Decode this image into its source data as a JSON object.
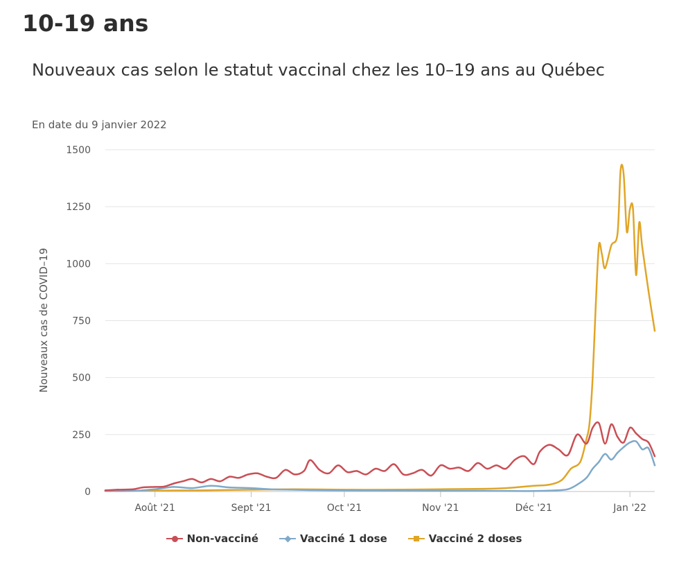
{
  "page": {
    "heading": "10-19 ans"
  },
  "chart_data": {
    "type": "line",
    "title": "Nouveaux cas selon le statut vaccinal chez les 10–19 ans au Québec",
    "subtitle": "En date du 9 janvier 2022",
    "ylabel": "Nouveaux cas de COVID–19",
    "xlabel": "",
    "ylim": [
      0,
      1500
    ],
    "yticks": [
      0,
      250,
      500,
      750,
      1000,
      1250,
      1500
    ],
    "xticks": [
      {
        "date": "2021-08-01",
        "label": "Août '21"
      },
      {
        "date": "2021-09-01",
        "label": "Sept '21"
      },
      {
        "date": "2021-10-01",
        "label": "Oct '21"
      },
      {
        "date": "2021-11-01",
        "label": "Nov '21"
      },
      {
        "date": "2021-12-01",
        "label": "Déc '21"
      },
      {
        "date": "2022-01-01",
        "label": "Jan '22"
      }
    ],
    "x_range": [
      "2021-07-16",
      "2022-01-09"
    ],
    "grid": true,
    "legend_position": "bottom-center",
    "series": [
      {
        "name": "Non-vacciné",
        "color": "#c94f55",
        "marker": "circle",
        "points": [
          [
            "2021-07-16",
            5
          ],
          [
            "2021-07-20",
            8
          ],
          [
            "2021-07-25",
            10
          ],
          [
            "2021-07-28",
            18
          ],
          [
            "2021-08-01",
            20
          ],
          [
            "2021-08-04",
            22
          ],
          [
            "2021-08-07",
            35
          ],
          [
            "2021-08-10",
            45
          ],
          [
            "2021-08-13",
            55
          ],
          [
            "2021-08-16",
            40
          ],
          [
            "2021-08-19",
            55
          ],
          [
            "2021-08-22",
            45
          ],
          [
            "2021-08-25",
            65
          ],
          [
            "2021-08-28",
            60
          ],
          [
            "2021-08-31",
            75
          ],
          [
            "2021-09-03",
            80
          ],
          [
            "2021-09-06",
            65
          ],
          [
            "2021-09-09",
            60
          ],
          [
            "2021-09-12",
            95
          ],
          [
            "2021-09-15",
            75
          ],
          [
            "2021-09-18",
            90
          ],
          [
            "2021-09-20",
            138
          ],
          [
            "2021-09-23",
            95
          ],
          [
            "2021-09-26",
            80
          ],
          [
            "2021-09-29",
            115
          ],
          [
            "2021-10-02",
            85
          ],
          [
            "2021-10-05",
            90
          ],
          [
            "2021-10-08",
            75
          ],
          [
            "2021-10-11",
            100
          ],
          [
            "2021-10-14",
            90
          ],
          [
            "2021-10-17",
            120
          ],
          [
            "2021-10-20",
            75
          ],
          [
            "2021-10-23",
            80
          ],
          [
            "2021-10-26",
            95
          ],
          [
            "2021-10-29",
            70
          ],
          [
            "2021-11-01",
            115
          ],
          [
            "2021-11-04",
            100
          ],
          [
            "2021-11-07",
            105
          ],
          [
            "2021-11-10",
            90
          ],
          [
            "2021-11-13",
            125
          ],
          [
            "2021-11-16",
            100
          ],
          [
            "2021-11-19",
            115
          ],
          [
            "2021-11-22",
            100
          ],
          [
            "2021-11-25",
            140
          ],
          [
            "2021-11-28",
            155
          ],
          [
            "2021-12-01",
            120
          ],
          [
            "2021-12-03",
            175
          ],
          [
            "2021-12-06",
            205
          ],
          [
            "2021-12-09",
            185
          ],
          [
            "2021-12-12",
            160
          ],
          [
            "2021-12-15",
            250
          ],
          [
            "2021-12-18",
            210
          ],
          [
            "2021-12-20",
            280
          ],
          [
            "2021-12-22",
            300
          ],
          [
            "2021-12-24",
            210
          ],
          [
            "2021-12-26",
            295
          ],
          [
            "2021-12-28",
            240
          ],
          [
            "2021-12-30",
            215
          ],
          [
            "2022-01-01",
            280
          ],
          [
            "2022-01-03",
            255
          ],
          [
            "2022-01-05",
            230
          ],
          [
            "2022-01-07",
            215
          ],
          [
            "2022-01-09",
            155
          ]
        ]
      },
      {
        "name": "Vacciné 1 dose",
        "color": "#7fa9c9",
        "marker": "diamond",
        "points": [
          [
            "2021-07-16",
            2
          ],
          [
            "2021-07-25",
            3
          ],
          [
            "2021-08-01",
            10
          ],
          [
            "2021-08-07",
            20
          ],
          [
            "2021-08-13",
            15
          ],
          [
            "2021-08-19",
            25
          ],
          [
            "2021-08-25",
            18
          ],
          [
            "2021-09-01",
            15
          ],
          [
            "2021-09-07",
            10
          ],
          [
            "2021-09-14",
            8
          ],
          [
            "2021-09-21",
            6
          ],
          [
            "2021-10-01",
            5
          ],
          [
            "2021-10-15",
            4
          ],
          [
            "2021-11-01",
            3
          ],
          [
            "2021-11-15",
            3
          ],
          [
            "2021-12-01",
            2
          ],
          [
            "2021-12-08",
            5
          ],
          [
            "2021-12-12",
            10
          ],
          [
            "2021-12-15",
            30
          ],
          [
            "2021-12-18",
            60
          ],
          [
            "2021-12-20",
            100
          ],
          [
            "2021-12-22",
            130
          ],
          [
            "2021-12-24",
            165
          ],
          [
            "2021-12-26",
            140
          ],
          [
            "2021-12-28",
            170
          ],
          [
            "2021-12-30",
            195
          ],
          [
            "2022-01-01",
            215
          ],
          [
            "2022-01-03",
            220
          ],
          [
            "2022-01-05",
            185
          ],
          [
            "2022-01-07",
            190
          ],
          [
            "2022-01-09",
            115
          ]
        ]
      },
      {
        "name": "Vacciné 2 doses",
        "color": "#e0a527",
        "marker": "square",
        "points": [
          [
            "2021-07-16",
            2
          ],
          [
            "2021-08-01",
            4
          ],
          [
            "2021-08-15",
            5
          ],
          [
            "2021-09-01",
            8
          ],
          [
            "2021-09-15",
            10
          ],
          [
            "2021-10-01",
            8
          ],
          [
            "2021-10-15",
            8
          ],
          [
            "2021-11-01",
            10
          ],
          [
            "2021-11-15",
            12
          ],
          [
            "2021-11-22",
            15
          ],
          [
            "2021-12-01",
            25
          ],
          [
            "2021-12-06",
            30
          ],
          [
            "2021-12-10",
            50
          ],
          [
            "2021-12-13",
            100
          ],
          [
            "2021-12-16",
            130
          ],
          [
            "2021-12-18",
            230
          ],
          [
            "2021-12-19",
            300
          ],
          [
            "2021-12-20",
            500
          ],
          [
            "2021-12-21",
            820
          ],
          [
            "2021-12-22",
            1080
          ],
          [
            "2021-12-23",
            1040
          ],
          [
            "2021-12-24",
            980
          ],
          [
            "2021-12-26",
            1080
          ],
          [
            "2021-12-28",
            1130
          ],
          [
            "2021-12-29",
            1410
          ],
          [
            "2021-12-30",
            1390
          ],
          [
            "2021-12-31",
            1140
          ],
          [
            "2022-01-01",
            1240
          ],
          [
            "2022-01-02",
            1240
          ],
          [
            "2022-01-03",
            950
          ],
          [
            "2022-01-04",
            1180
          ],
          [
            "2022-01-05",
            1070
          ],
          [
            "2022-01-07",
            880
          ],
          [
            "2022-01-09",
            705
          ]
        ]
      }
    ]
  }
}
